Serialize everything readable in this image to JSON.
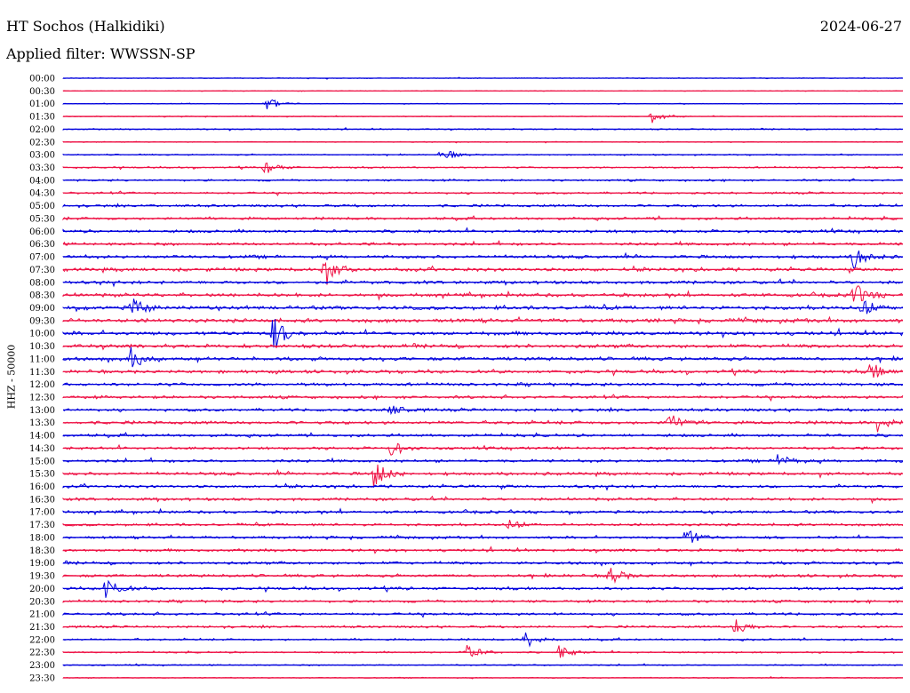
{
  "header": {
    "station": "HT Sochos (Halkidiki)",
    "date": "2024-06-27",
    "filter": "Applied filter: WWSSN-SP"
  },
  "chart_data": {
    "type": "line",
    "title": "HT Sochos (Halkidiki)",
    "ylabel": "HHZ - 50000",
    "xlabel": "",
    "colors": [
      "#0000dd",
      "#ee1144"
    ],
    "categories": [
      "00:00",
      "00:30",
      "01:00",
      "01:30",
      "02:00",
      "02:30",
      "03:00",
      "03:30",
      "04:00",
      "04:30",
      "05:00",
      "05:30",
      "06:00",
      "06:30",
      "07:00",
      "07:30",
      "08:00",
      "08:30",
      "09:00",
      "09:30",
      "10:00",
      "10:30",
      "11:00",
      "11:30",
      "12:00",
      "12:30",
      "13:00",
      "13:30",
      "14:00",
      "14:30",
      "15:00",
      "15:30",
      "16:00",
      "16:30",
      "17:00",
      "17:30",
      "18:00",
      "18:30",
      "19:00",
      "19:30",
      "20:00",
      "20:30",
      "21:00",
      "21:30",
      "22:00",
      "22:30",
      "23:00",
      "23:30"
    ],
    "noise_level": [
      0.12,
      0.1,
      0.12,
      0.14,
      0.2,
      0.15,
      0.2,
      0.25,
      0.3,
      0.32,
      0.4,
      0.42,
      0.45,
      0.45,
      0.5,
      0.55,
      0.5,
      0.55,
      0.6,
      0.6,
      0.6,
      0.58,
      0.55,
      0.52,
      0.5,
      0.45,
      0.45,
      0.5,
      0.45,
      0.42,
      0.45,
      0.48,
      0.45,
      0.45,
      0.45,
      0.4,
      0.4,
      0.45,
      0.45,
      0.45,
      0.45,
      0.4,
      0.4,
      0.35,
      0.3,
      0.25,
      0.2,
      0.15
    ],
    "events": [
      {
        "row": 2,
        "pos": 0.24,
        "amp": 1.0
      },
      {
        "row": 3,
        "pos": 0.7,
        "amp": 0.9
      },
      {
        "row": 6,
        "pos": 0.45,
        "amp": 0.9
      },
      {
        "row": 7,
        "pos": 0.24,
        "amp": 0.9
      },
      {
        "row": 14,
        "pos": 0.94,
        "amp": 1.6
      },
      {
        "row": 15,
        "pos": 0.31,
        "amp": 2.0
      },
      {
        "row": 17,
        "pos": 0.94,
        "amp": 1.6
      },
      {
        "row": 18,
        "pos": 0.08,
        "amp": 1.5
      },
      {
        "row": 18,
        "pos": 0.95,
        "amp": 1.3
      },
      {
        "row": 20,
        "pos": 0.25,
        "amp": 2.2
      },
      {
        "row": 22,
        "pos": 0.08,
        "amp": 1.5
      },
      {
        "row": 23,
        "pos": 0.96,
        "amp": 1.2
      },
      {
        "row": 26,
        "pos": 0.39,
        "amp": 0.9
      },
      {
        "row": 27,
        "pos": 0.72,
        "amp": 1.3
      },
      {
        "row": 27,
        "pos": 0.97,
        "amp": 1.2
      },
      {
        "row": 29,
        "pos": 0.39,
        "amp": 1.0
      },
      {
        "row": 30,
        "pos": 0.85,
        "amp": 1.0
      },
      {
        "row": 31,
        "pos": 0.37,
        "amp": 1.8
      },
      {
        "row": 35,
        "pos": 0.53,
        "amp": 0.7
      },
      {
        "row": 36,
        "pos": 0.74,
        "amp": 1.4
      },
      {
        "row": 39,
        "pos": 0.65,
        "amp": 1.2
      },
      {
        "row": 40,
        "pos": 0.05,
        "amp": 1.5
      },
      {
        "row": 43,
        "pos": 0.8,
        "amp": 1.1
      },
      {
        "row": 44,
        "pos": 0.55,
        "amp": 1.2
      },
      {
        "row": 45,
        "pos": 0.48,
        "amp": 1.0
      },
      {
        "row": 45,
        "pos": 0.59,
        "amp": 0.9
      }
    ]
  }
}
